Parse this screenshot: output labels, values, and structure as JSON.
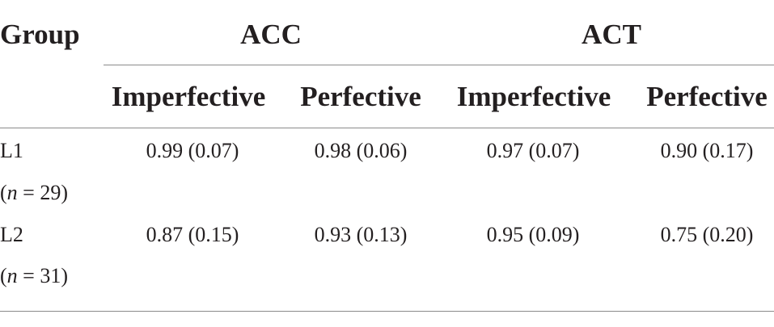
{
  "table": {
    "header": {
      "group_label": "Group",
      "groups": [
        {
          "label": "ACC",
          "sub": [
            "Imperfective",
            "Perfective"
          ]
        },
        {
          "label": "ACT",
          "sub": [
            "Imperfective",
            "Perfective"
          ]
        }
      ]
    },
    "rows": [
      {
        "group": "L1",
        "n_prefix": "(",
        "n_var": "n",
        "n_suffix": " = 29)",
        "values": [
          "0.99 (0.07)",
          "0.98 (0.06)",
          "0.97 (0.07)",
          "0.90 (0.17)"
        ]
      },
      {
        "group": "L2",
        "n_prefix": "(",
        "n_var": "n",
        "n_suffix": " = 31)",
        "values": [
          "0.87 (0.15)",
          "0.93 (0.13)",
          "0.95 (0.09)",
          "0.75 (0.20)"
        ]
      }
    ]
  }
}
